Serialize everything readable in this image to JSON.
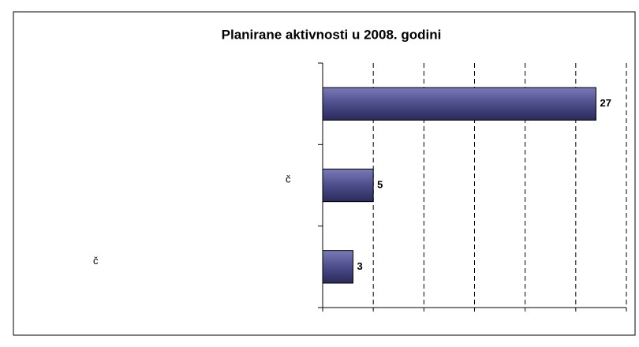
{
  "chart_data": {
    "type": "hbar",
    "title": "Planirane aktivnosti u 2008. godini",
    "categories": [
      null,
      "č",
      "č"
    ],
    "values": [
      27,
      5,
      3
    ],
    "color": "#4d4d8c",
    "xlim": [
      0,
      30
    ],
    "xticks": [
      0,
      5,
      10,
      15,
      20,
      25,
      30
    ],
    "grid": true
  }
}
